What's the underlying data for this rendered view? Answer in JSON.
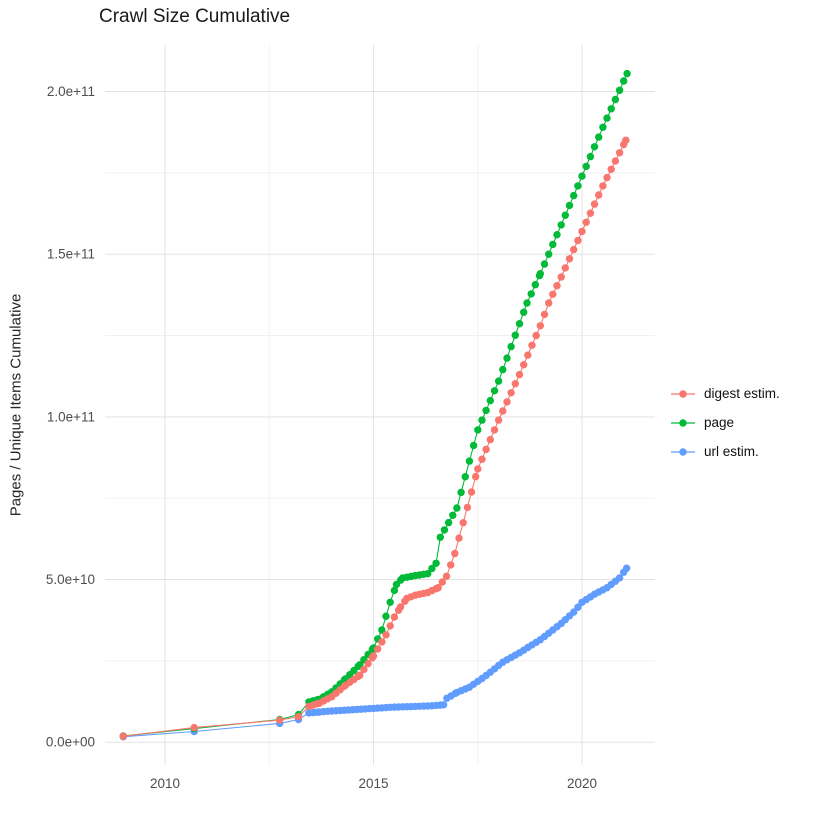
{
  "chart_data": {
    "type": "line",
    "title": "Crawl Size Cumulative",
    "xlabel": "",
    "ylabel": "Pages / Unique Items Cumulative",
    "grid": true,
    "legend_position": "right",
    "xlim": [
      2008.56,
      2021.75
    ],
    "ylim": [
      -7000000000.0,
      214300000000.0
    ],
    "x_ticks": [
      {
        "v": 2010,
        "label": "2010"
      },
      {
        "v": 2015,
        "label": "2015"
      },
      {
        "v": 2020,
        "label": "2020"
      }
    ],
    "x_minor": [
      2012.5,
      2017.5
    ],
    "y_ticks": [
      {
        "v": 0,
        "label": "0.0e+00"
      },
      {
        "v": 50000000000.0,
        "label": "5.0e+10"
      },
      {
        "v": 100000000000.0,
        "label": "1.0e+11"
      },
      {
        "v": 150000000000.0,
        "label": "1.5e+11"
      },
      {
        "v": 200000000000.0,
        "label": "2.0e+11"
      }
    ],
    "y_minor": [
      25000000000.0,
      75000000000.0,
      125000000000.0,
      175000000000.0
    ],
    "dense_from": 2013.3,
    "dot_step_years": 0.1,
    "colors": {
      "grid_major": "#E3E3E3",
      "grid_minor": "#F1F1F1",
      "tick_text": "#4D4D4D",
      "title_text": "#1A1A1A"
    },
    "series": [
      {
        "name": "digest estim.",
        "color": "#F8766D",
        "points": [
          [
            2009.0,
            1850000000.0
          ],
          [
            2010.7,
            4500000000.0
          ],
          [
            2012.75,
            6800000000.0
          ],
          [
            2013.2,
            7800000000.0
          ],
          [
            2013.45,
            11000000000.0
          ],
          [
            2013.7,
            12000000000.0
          ],
          [
            2014.0,
            14000000000.0
          ],
          [
            2014.33,
            17500000000.0
          ],
          [
            2014.67,
            20600000000.0
          ],
          [
            2015.0,
            26500000000.0
          ],
          [
            2015.3,
            33000000000.0
          ],
          [
            2015.5,
            38500000000.0
          ],
          [
            2015.65,
            41600000000.0
          ],
          [
            2015.8,
            44200000000.0
          ],
          [
            2016.0,
            45200000000.0
          ],
          [
            2016.3,
            46000000000.0
          ],
          [
            2016.55,
            47500000000.0
          ],
          [
            2016.75,
            51000000000.0
          ],
          [
            2016.95,
            58000000000.0
          ],
          [
            2017.5,
            84000000000.0
          ],
          [
            2018.0,
            99000000000.0
          ],
          [
            2018.5,
            113000000000.0
          ],
          [
            2019.0,
            128000000000.0
          ],
          [
            2019.2,
            135000000000.0
          ],
          [
            2019.5,
            143000000000.0
          ],
          [
            2020.0,
            157000000000.0
          ],
          [
            2020.5,
            171000000000.0
          ],
          [
            2021.05,
            185000000000.0
          ]
        ]
      },
      {
        "name": "page",
        "color": "#00BA38",
        "points": [
          [
            2009.0,
            1900000000.0
          ],
          [
            2010.7,
            4200000000.0
          ],
          [
            2012.75,
            7000000000.0
          ],
          [
            2013.2,
            8500000000.0
          ],
          [
            2013.45,
            12400000000.0
          ],
          [
            2013.7,
            13200000000.0
          ],
          [
            2014.0,
            15500000000.0
          ],
          [
            2014.33,
            19500000000.0
          ],
          [
            2014.67,
            23800000000.0
          ],
          [
            2015.0,
            29000000000.0
          ],
          [
            2015.2,
            34500000000.0
          ],
          [
            2015.4,
            43000000000.0
          ],
          [
            2015.55,
            48500000000.0
          ],
          [
            2015.7,
            50500000000.0
          ],
          [
            2016.0,
            51200000000.0
          ],
          [
            2016.3,
            51800000000.0
          ],
          [
            2016.5,
            55000000000.0
          ],
          [
            2016.6,
            63000000000.0
          ],
          [
            2017.0,
            72000000000.0
          ],
          [
            2017.5,
            96000000000.0
          ],
          [
            2018.0,
            111000000000.0
          ],
          [
            2018.68,
            135000000000.0
          ],
          [
            2019.0,
            144000000000.0
          ],
          [
            2019.5,
            159000000000.0
          ],
          [
            2020.0,
            174000000000.0
          ],
          [
            2020.5,
            189000000000.0
          ],
          [
            2021.08,
            205500000000.0
          ]
        ]
      },
      {
        "name": "url estim.",
        "color": "#619CFF",
        "points": [
          [
            2009.0,
            1700000000.0
          ],
          [
            2010.7,
            3300000000.0
          ],
          [
            2012.75,
            5800000000.0
          ],
          [
            2013.2,
            7000000000.0
          ],
          [
            2013.45,
            9000000000.0
          ],
          [
            2013.7,
            9300000000.0
          ],
          [
            2014.0,
            9600000000.0
          ],
          [
            2014.5,
            10000000000.0
          ],
          [
            2015.0,
            10400000000.0
          ],
          [
            2015.5,
            10800000000.0
          ],
          [
            2016.0,
            11000000000.0
          ],
          [
            2016.4,
            11200000000.0
          ],
          [
            2016.68,
            11500000000.0
          ],
          [
            2016.76,
            13500000000.0
          ],
          [
            2017.0,
            15300000000.0
          ],
          [
            2017.3,
            16900000000.0
          ],
          [
            2017.7,
            20500000000.0
          ],
          [
            2018.1,
            24600000000.0
          ],
          [
            2018.5,
            27500000000.0
          ],
          [
            2019.0,
            31500000000.0
          ],
          [
            2019.5,
            36500000000.0
          ],
          [
            2019.8,
            40000000000.0
          ],
          [
            2020.0,
            43000000000.0
          ],
          [
            2020.3,
            45500000000.0
          ],
          [
            2020.6,
            47500000000.0
          ],
          [
            2020.9,
            50500000000.0
          ],
          [
            2021.07,
            53500000000.0
          ]
        ]
      }
    ]
  }
}
